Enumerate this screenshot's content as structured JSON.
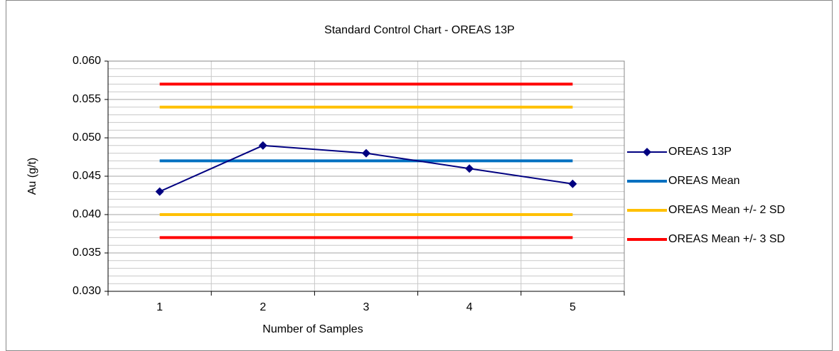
{
  "chart_data": {
    "type": "line",
    "title": "Standard Control Chart - OREAS 13P",
    "x_label": "Number of Samples",
    "y_label": "Au (g/t)",
    "categories": [
      1,
      2,
      3,
      4,
      5
    ],
    "series": [
      {
        "name": "OREAS 13P",
        "color": "#000080",
        "marker": "diamond",
        "values": [
          0.043,
          0.049,
          0.048,
          0.046,
          0.044
        ]
      },
      {
        "name": "OREAS Mean",
        "color": "#0070c0",
        "values": [
          0.047,
          0.047,
          0.047,
          0.047,
          0.047
        ]
      },
      {
        "name": "OREAS Mean +/- 2 SD",
        "color": "#ffc000",
        "upper": [
          0.054,
          0.054,
          0.054,
          0.054,
          0.054
        ],
        "lower": [
          0.04,
          0.04,
          0.04,
          0.04,
          0.04
        ]
      },
      {
        "name": "OREAS Mean +/- 3 SD",
        "color": "#ff0000",
        "upper": [
          0.057,
          0.057,
          0.057,
          0.057,
          0.057
        ],
        "lower": [
          0.037,
          0.037,
          0.037,
          0.037,
          0.037
        ]
      }
    ],
    "ylim": [
      0.03,
      0.06
    ],
    "yticks": [
      {
        "value": 0.03,
        "label": "0.030"
      },
      {
        "value": 0.035,
        "label": "0.035"
      },
      {
        "value": 0.04,
        "label": "0.040"
      },
      {
        "value": 0.045,
        "label": "0.045"
      },
      {
        "value": 0.05,
        "label": "0.050"
      },
      {
        "value": 0.055,
        "label": "0.055"
      },
      {
        "value": 0.06,
        "label": "0.060"
      }
    ],
    "y_minor_per_major": 5,
    "grid": true,
    "legend": "right"
  }
}
